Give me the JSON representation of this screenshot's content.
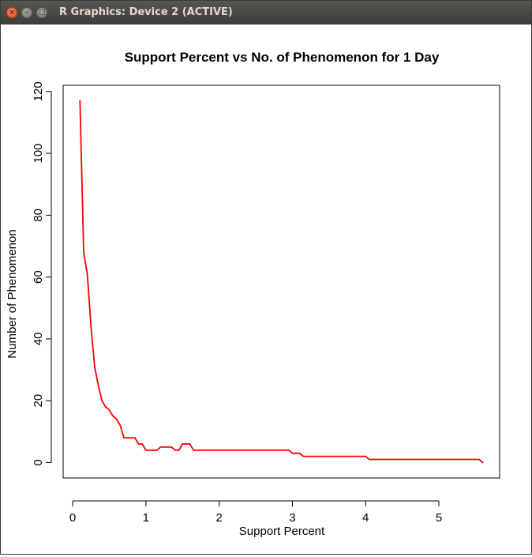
{
  "window": {
    "title": "R Graphics: Device 2 (ACTIVE)",
    "close_icon": "close-icon",
    "minimize_icon": "minimize-icon",
    "maximize_icon": "maximize-icon"
  },
  "chart_data": {
    "type": "line",
    "title": "Support Percent vs No. of Phenomenon for 1 Day",
    "xlabel": "Support Percent",
    "ylabel": "Number of Phenomenon",
    "xlim": [
      -0.13,
      5.83
    ],
    "ylim": [
      -5,
      122
    ],
    "xticks": [
      0,
      1,
      2,
      3,
      4,
      5
    ],
    "yticks": [
      0,
      20,
      40,
      60,
      80,
      100,
      120
    ],
    "grid": false,
    "line_color": "#ff0000",
    "series": [
      {
        "x": [
          0.1,
          0.15,
          0.2,
          0.25,
          0.3,
          0.35,
          0.4,
          0.45,
          0.5,
          0.55,
          0.6,
          0.65,
          0.7,
          0.7,
          0.75,
          0.85,
          0.9,
          0.95,
          1.0,
          1.15,
          1.2,
          1.35,
          1.4,
          1.45,
          1.5,
          1.6,
          1.65,
          2.95,
          3.0,
          3.1,
          3.15,
          4.0,
          4.05,
          5.55,
          5.6
        ],
        "y": [
          117,
          68,
          61,
          44,
          31,
          25,
          20,
          18,
          17,
          15,
          14,
          12,
          8,
          8,
          8,
          8,
          6,
          6,
          4,
          4,
          5,
          5,
          4,
          4,
          6,
          6,
          4,
          4,
          3,
          3,
          2,
          2,
          1,
          1,
          0
        ]
      }
    ]
  }
}
